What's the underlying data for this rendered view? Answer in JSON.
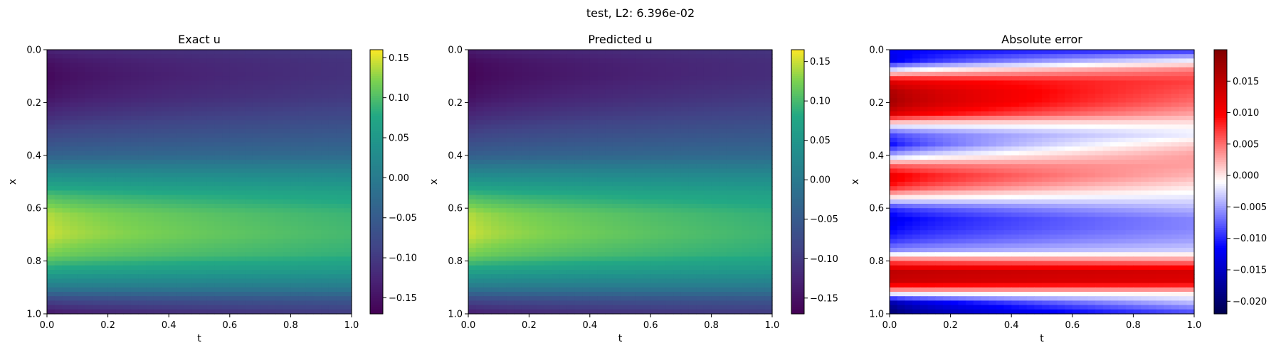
{
  "figure_title": "test, L2: 6.396e-02",
  "chart_data": [
    {
      "type": "heatmap",
      "title": "Exact u",
      "xlabel": "t",
      "ylabel": "x",
      "xlim": [
        0.0,
        1.0
      ],
      "ylim": [
        1.0,
        0.0
      ],
      "xticks": [
        "0.0",
        "0.2",
        "0.4",
        "0.6",
        "0.8",
        "1.0"
      ],
      "yticks": [
        "0.0",
        "0.2",
        "0.4",
        "0.6",
        "0.8",
        "1.0"
      ],
      "colormap": "viridis",
      "color_range": [
        -0.17,
        0.16
      ],
      "colorbar_ticks": [
        "0.15",
        "0.10",
        "0.05",
        "0.00",
        "−0.05",
        "−0.10",
        "−0.15"
      ],
      "field_profile": {
        "x": [
          0.0,
          0.05,
          0.1,
          0.18,
          0.25,
          0.32,
          0.4,
          0.48,
          0.55,
          0.62,
          0.7,
          0.78,
          0.84,
          0.9,
          0.95,
          1.0
        ],
        "u_t0": [
          -0.13,
          -0.155,
          -0.165,
          -0.15,
          -0.12,
          -0.085,
          -0.04,
          0.04,
          0.1,
          0.14,
          0.15,
          0.12,
          0.07,
          0.0,
          -0.09,
          -0.15
        ],
        "u_t1": [
          -0.1,
          -0.11,
          -0.11,
          -0.1,
          -0.08,
          -0.055,
          -0.025,
          0.03,
          0.07,
          0.09,
          0.095,
          0.085,
          0.05,
          0.0,
          -0.06,
          -0.1
        ]
      }
    },
    {
      "type": "heatmap",
      "title": "Predicted u",
      "xlabel": "t",
      "ylabel": "x",
      "xlim": [
        0.0,
        1.0
      ],
      "ylim": [
        1.0,
        0.0
      ],
      "xticks": [
        "0.0",
        "0.2",
        "0.4",
        "0.6",
        "0.8",
        "1.0"
      ],
      "yticks": [
        "0.0",
        "0.2",
        "0.4",
        "0.6",
        "0.8",
        "1.0"
      ],
      "colormap": "viridis",
      "color_range": [
        -0.17,
        0.165
      ],
      "colorbar_ticks": [
        "0.15",
        "0.10",
        "0.05",
        "0.00",
        "−0.05",
        "−0.10",
        "−0.15"
      ],
      "field_profile": {
        "x": [
          0.0,
          0.05,
          0.1,
          0.18,
          0.25,
          0.32,
          0.4,
          0.48,
          0.55,
          0.62,
          0.7,
          0.78,
          0.84,
          0.9,
          0.95,
          1.0
        ],
        "u_t0": [
          -0.14,
          -0.165,
          -0.17,
          -0.155,
          -0.125,
          -0.09,
          -0.045,
          0.035,
          0.1,
          0.145,
          0.155,
          0.125,
          0.07,
          0.0,
          -0.085,
          -0.14
        ],
        "u_t1": [
          -0.105,
          -0.115,
          -0.115,
          -0.1,
          -0.08,
          -0.055,
          -0.025,
          0.03,
          0.07,
          0.09,
          0.095,
          0.085,
          0.05,
          0.0,
          -0.06,
          -0.1
        ]
      }
    },
    {
      "type": "heatmap",
      "title": "Absolute error",
      "xlabel": "t",
      "ylabel": "x",
      "xlim": [
        0.0,
        1.0
      ],
      "ylim": [
        1.0,
        0.0
      ],
      "xticks": [
        "0.0",
        "0.2",
        "0.4",
        "0.6",
        "0.8",
        "1.0"
      ],
      "yticks": [
        "0.0",
        "0.2",
        "0.4",
        "0.6",
        "0.8",
        "1.0"
      ],
      "colormap": "seismic",
      "color_range": [
        -0.022,
        0.02
      ],
      "colorbar_ticks": [
        "0.015",
        "0.010",
        "0.005",
        "0.000",
        "−0.005",
        "−0.010",
        "−0.015",
        "−0.020"
      ],
      "field_profile": {
        "x": [
          0.0,
          0.04,
          0.08,
          0.12,
          0.16,
          0.2,
          0.24,
          0.28,
          0.32,
          0.36,
          0.4,
          0.44,
          0.48,
          0.52,
          0.56,
          0.6,
          0.64,
          0.68,
          0.72,
          0.76,
          0.8,
          0.84,
          0.88,
          0.92,
          0.96,
          1.0
        ],
        "err_t0": [
          -0.012,
          -0.014,
          -0.002,
          0.012,
          0.017,
          0.018,
          0.014,
          0.0,
          -0.009,
          -0.012,
          -0.005,
          0.006,
          0.012,
          0.009,
          0.0,
          -0.01,
          -0.013,
          -0.012,
          -0.01,
          -0.006,
          0.006,
          0.015,
          0.014,
          0.0,
          -0.018,
          -0.021
        ],
        "err_t1": [
          -0.01,
          -0.002,
          0.005,
          0.007,
          0.006,
          0.005,
          0.003,
          0.0,
          -0.002,
          0.001,
          0.003,
          0.003,
          0.002,
          0.0,
          -0.002,
          -0.004,
          -0.006,
          -0.006,
          -0.005,
          -0.003,
          0.004,
          0.013,
          0.012,
          0.0,
          -0.004,
          -0.009
        ]
      }
    }
  ]
}
